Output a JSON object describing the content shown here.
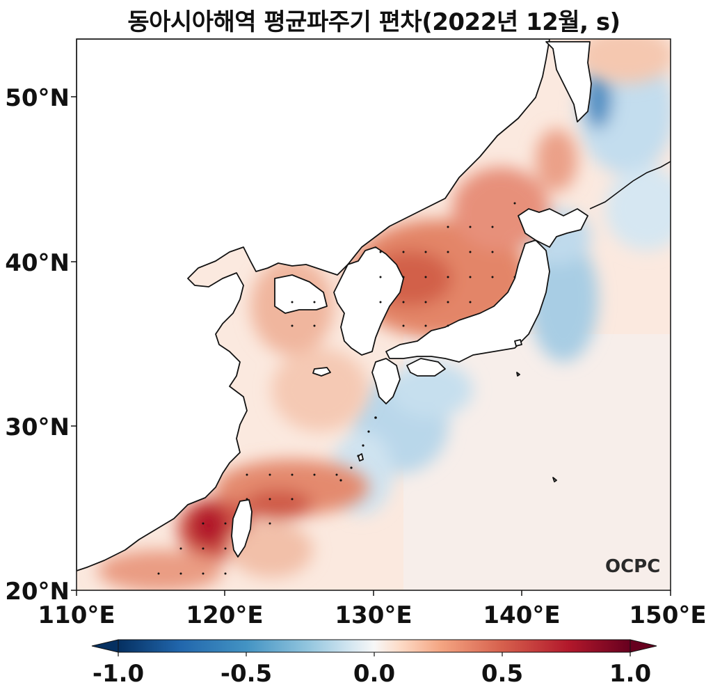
{
  "title": "동아시아해역 평균파주기 편차(2022년 12월, s)",
  "logo": "OCPC",
  "chart_data": {
    "type": "heatmap",
    "title": "동아시아해역 평균파주기 편차(2022년 12월, s)",
    "x_ticks": [
      "110°E",
      "120°E",
      "130°E",
      "140°E",
      "150°E"
    ],
    "y_ticks": [
      "50°N",
      "40°N",
      "30°N",
      "20°N"
    ],
    "xlim": [
      110,
      150
    ],
    "ylim": [
      20,
      53.5
    ],
    "colorbar": {
      "colormap": "RdBu_r",
      "range": [
        -1.0,
        1.0
      ],
      "extend": "both",
      "tick_labels": [
        "-1.0",
        "-0.5",
        "0.0",
        "0.5",
        "1.0"
      ]
    }
  }
}
